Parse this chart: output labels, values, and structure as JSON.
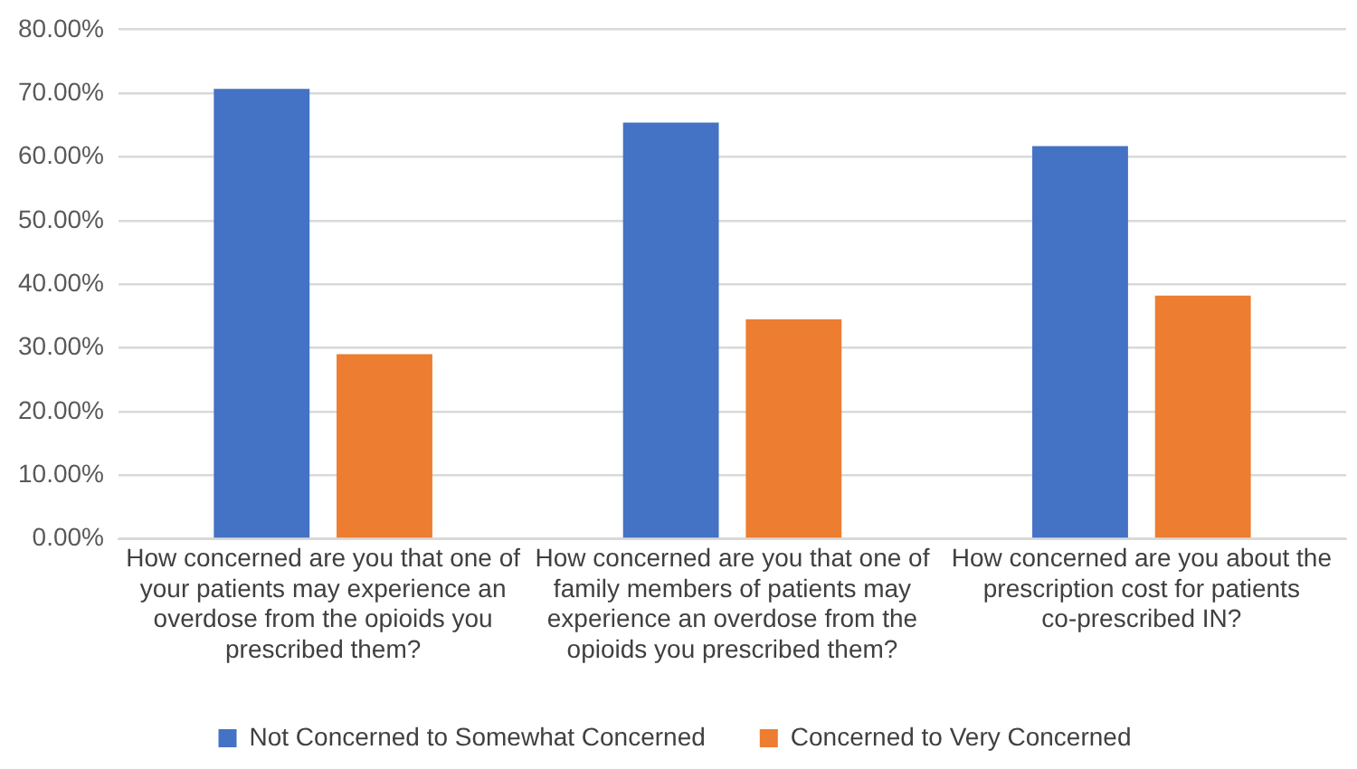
{
  "chart_data": {
    "type": "bar",
    "categories": [
      "How concerned are you that one of your patients may experience an overdose from the opioids you prescribed them?",
      "How concerned are you that one of family members of patients may experience an overdose from the opioids you prescribed them?",
      "How concerned are you about the prescription cost for patients co-prescribed IN?"
    ],
    "series": [
      {
        "name": "Not Concerned to Somewhat Concerned",
        "color": "#4472c4",
        "values": [
          70.7,
          65.4,
          61.7
        ]
      },
      {
        "name": "Concerned to Very Concerned",
        "color": "#ed7d31",
        "values": [
          29.0,
          34.5,
          38.2
        ]
      }
    ],
    "ylim": [
      0,
      80
    ],
    "yticks": [
      {
        "value": 0,
        "label": "0.00%"
      },
      {
        "value": 10,
        "label": "10.00%"
      },
      {
        "value": 20,
        "label": "20.00%"
      },
      {
        "value": 30,
        "label": "30.00%"
      },
      {
        "value": 40,
        "label": "40.00%"
      },
      {
        "value": 50,
        "label": "50.00%"
      },
      {
        "value": 60,
        "label": "60.00%"
      },
      {
        "value": 70,
        "label": "70.00%"
      },
      {
        "value": 80,
        "label": "80.00%"
      }
    ],
    "grid": "y",
    "legend": "bottom"
  }
}
